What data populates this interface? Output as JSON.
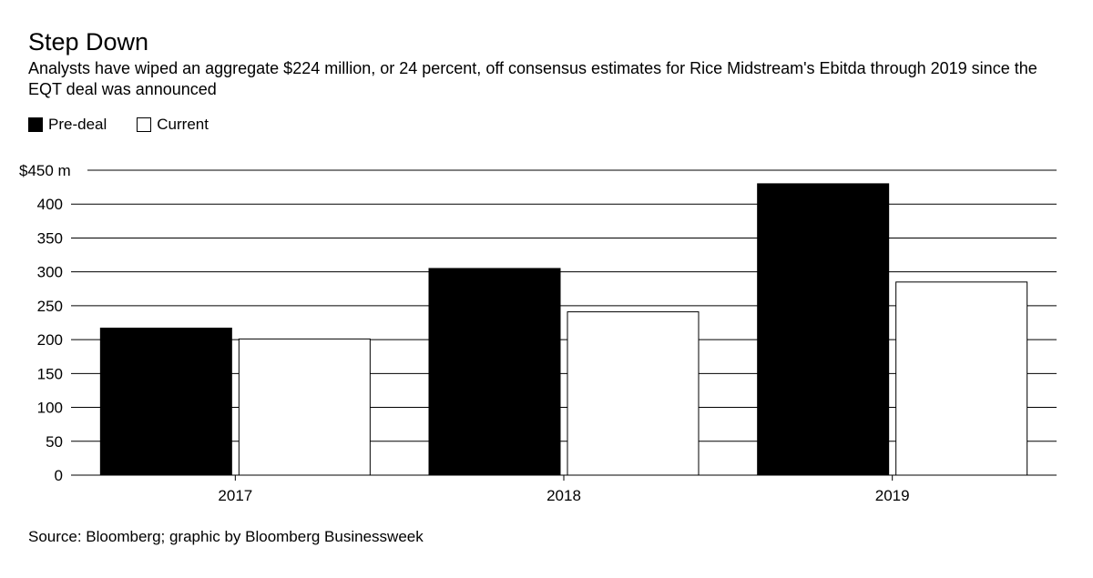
{
  "chart_data": {
    "type": "bar",
    "title": "Step Down",
    "subtitle": "Analysts have wiped an aggregate $224 million, or 24 percent, off consensus estimates for Rice Midstream's Ebitda through 2019 since the EQT deal was announced",
    "categories": [
      "2017",
      "2018",
      "2019"
    ],
    "series": [
      {
        "name": "Pre-deal",
        "color": "#000000",
        "values": [
          217,
          305,
          430
        ]
      },
      {
        "name": "Current",
        "color": "#ffffff",
        "values": [
          201,
          241,
          285
        ]
      }
    ],
    "ylim": [
      0,
      450
    ],
    "yticks": [
      0,
      50,
      100,
      150,
      200,
      250,
      300,
      350,
      400,
      450
    ],
    "ytick_labels": [
      "0",
      "50",
      "100",
      "150",
      "200",
      "250",
      "300",
      "350",
      "400",
      "$450 m"
    ],
    "xlabel": "",
    "ylabel": "",
    "grid": true,
    "legend_position": "top-left",
    "source": "Source: Bloomberg; graphic by Bloomberg Businessweek"
  }
}
